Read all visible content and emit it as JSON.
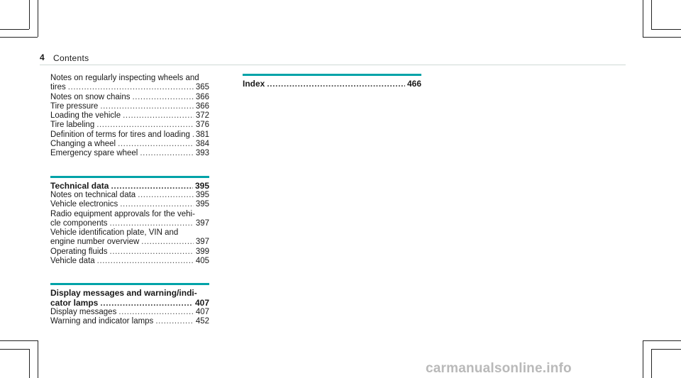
{
  "header": {
    "page_number": "4",
    "title": "Contents"
  },
  "column1": {
    "sections": [
      {
        "heading": null,
        "entries": [
          {
            "lines": [
              "Notes on regularly inspecting wheels and",
              "tires"
            ],
            "page": "365"
          },
          {
            "lines": [
              "Notes on snow chains"
            ],
            "page": "366"
          },
          {
            "lines": [
              "Tire pressure"
            ],
            "page": "366"
          },
          {
            "lines": [
              "Loading the vehicle"
            ],
            "page": "372"
          },
          {
            "lines": [
              "Tire labeling"
            ],
            "page": "376"
          },
          {
            "lines": [
              "Definition of terms for tires and loading"
            ],
            "page": "381"
          },
          {
            "lines": [
              "Changing a wheel"
            ],
            "page": "384"
          },
          {
            "lines": [
              "Emergency spare wheel"
            ],
            "page": "393"
          }
        ]
      },
      {
        "heading": {
          "lines": [
            "Technical data"
          ],
          "page": "395"
        },
        "entries": [
          {
            "lines": [
              "Notes on technical data"
            ],
            "page": "395"
          },
          {
            "lines": [
              "Vehicle electronics"
            ],
            "page": "395"
          },
          {
            "lines": [
              "Radio equipment approvals for the vehi-",
              "cle components"
            ],
            "page": "397"
          },
          {
            "lines": [
              "Vehicle identification plate, VIN and",
              "engine number overview"
            ],
            "page": "397"
          },
          {
            "lines": [
              "Operating fluids"
            ],
            "page": "399"
          },
          {
            "lines": [
              "Vehicle data"
            ],
            "page": "405"
          }
        ]
      },
      {
        "heading": {
          "lines": [
            "Display messages and warning/indi-",
            "cator lamps"
          ],
          "page": "407"
        },
        "entries": [
          {
            "lines": [
              "Display messages"
            ],
            "page": "407"
          },
          {
            "lines": [
              "Warning and indicator lamps"
            ],
            "page": "452"
          }
        ]
      }
    ]
  },
  "column2": {
    "heading": {
      "lines": [
        "Index"
      ],
      "page": "466"
    }
  },
  "watermark": "carmanualsonline.info",
  "colors": {
    "accent_rule": "#00a3a8",
    "header_rule": "#cfd9d6",
    "watermark": "#b9b9b9"
  }
}
